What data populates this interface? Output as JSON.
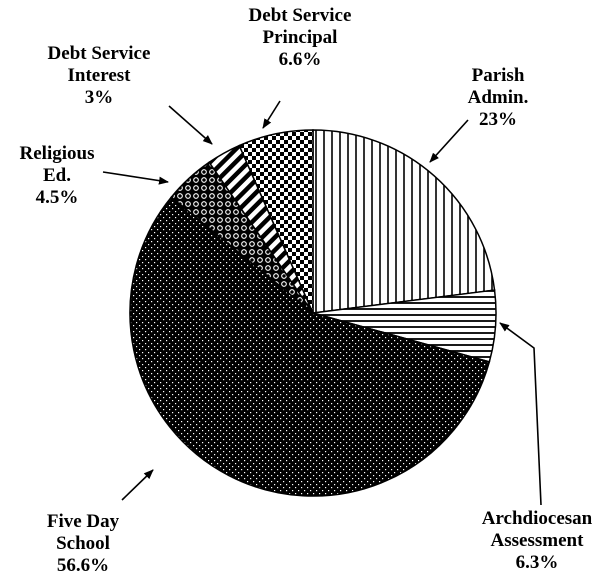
{
  "chart_data": {
    "type": "pie",
    "title": "",
    "slices": [
      {
        "label_lines": [
          "Parish",
          "Admin."
        ],
        "value_label": "23%",
        "value": 23,
        "pattern": "vertical-lines"
      },
      {
        "label_lines": [
          "Archdiocesan",
          "Assessment"
        ],
        "value_label": "6.3%",
        "value": 6.3,
        "pattern": "horizontal-lines"
      },
      {
        "label_lines": [
          "Five Day",
          "School"
        ],
        "value_label": "56.6%",
        "value": 56.6,
        "pattern": "white-dots-on-black"
      },
      {
        "label_lines": [
          "Religious",
          "Ed."
        ],
        "value_label": "4.5%",
        "value": 4.5,
        "pattern": "circles-on-black"
      },
      {
        "label_lines": [
          "Debt Service",
          "Interest"
        ],
        "value_label": "3%",
        "value": 3,
        "pattern": "diagonal-stripes"
      },
      {
        "label_lines": [
          "Debt Service",
          "Principal"
        ],
        "value_label": "6.6%",
        "value": 6.6,
        "pattern": "checkerboard"
      }
    ],
    "start_angle_deg": 90,
    "direction": "clockwise",
    "legend": "none",
    "colors": {
      "ink": "#000000",
      "paper": "#ffffff"
    }
  }
}
